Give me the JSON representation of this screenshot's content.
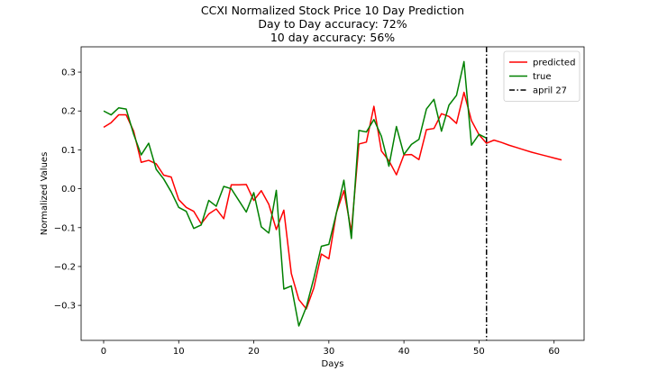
{
  "chart_data": {
    "type": "line",
    "title_lines": [
      "CCXI Normalized Stock Price 10 Day Prediction",
      "Day to Day accuracy: 72%",
      "10 day accuracy: 56%"
    ],
    "xlabel": "Days",
    "ylabel": "Normalized Values",
    "xlim": [
      -3,
      64
    ],
    "ylim": [
      -0.39,
      0.365
    ],
    "xticks": [
      0,
      10,
      20,
      30,
      40,
      50,
      60
    ],
    "xtick_labels": [
      "0",
      "10",
      "20",
      "30",
      "40",
      "50",
      "60"
    ],
    "yticks": [
      -0.3,
      -0.2,
      -0.1,
      0.0,
      0.1,
      0.2,
      0.3
    ],
    "ytick_labels": [
      "−0.3",
      "−0.2",
      "−0.1",
      "0.0",
      "0.1",
      "0.2",
      "0.3"
    ],
    "grid": false,
    "legend_position": "top-right",
    "series": [
      {
        "name": "predicted",
        "color": "#ff0000",
        "style": "solid",
        "x": [
          0,
          1,
          2,
          3,
          4,
          5,
          6,
          7,
          8,
          9,
          10,
          11,
          12,
          13,
          14,
          15,
          16,
          17,
          18,
          19,
          20,
          21,
          22,
          23,
          24,
          25,
          26,
          27,
          28,
          29,
          30,
          31,
          32,
          33,
          34,
          35,
          36,
          37,
          38,
          39,
          40,
          41,
          42,
          43,
          44,
          45,
          46,
          47,
          48,
          49,
          50,
          51,
          52,
          53,
          54,
          55,
          56,
          57,
          58,
          59,
          60,
          61
        ],
        "y": [
          0.158,
          0.17,
          0.19,
          0.19,
          0.148,
          0.068,
          0.073,
          0.064,
          0.035,
          0.03,
          -0.028,
          -0.048,
          -0.058,
          -0.09,
          -0.065,
          -0.052,
          -0.077,
          0.01,
          0.01,
          0.011,
          -0.03,
          -0.005,
          -0.04,
          -0.105,
          -0.055,
          -0.218,
          -0.285,
          -0.309,
          -0.255,
          -0.168,
          -0.18,
          -0.062,
          -0.005,
          -0.11,
          0.115,
          0.12,
          0.212,
          0.097,
          0.072,
          0.036,
          0.087,
          0.088,
          0.075,
          0.152,
          0.155,
          0.193,
          0.186,
          0.168,
          0.248,
          0.175,
          0.139,
          0.117,
          0.125,
          0.119,
          0.112,
          0.106,
          0.1,
          0.094,
          0.089,
          0.084,
          0.079,
          0.074
        ]
      },
      {
        "name": "true",
        "color": "#008000",
        "style": "solid",
        "x": [
          0,
          1,
          2,
          3,
          4,
          5,
          6,
          7,
          8,
          9,
          10,
          11,
          12,
          13,
          14,
          15,
          16,
          17,
          18,
          19,
          20,
          21,
          22,
          23,
          24,
          25,
          26,
          27,
          28,
          29,
          30,
          31,
          32,
          33,
          34,
          35,
          36,
          37,
          38,
          39,
          40,
          41,
          42,
          43,
          44,
          45,
          46,
          47,
          48,
          49,
          50,
          51
        ],
        "y": [
          0.2,
          0.19,
          0.208,
          0.205,
          0.14,
          0.087,
          0.117,
          0.05,
          0.025,
          -0.008,
          -0.048,
          -0.058,
          -0.102,
          -0.093,
          -0.03,
          -0.045,
          0.006,
          0.0,
          -0.03,
          -0.06,
          -0.01,
          -0.098,
          -0.114,
          -0.004,
          -0.258,
          -0.25,
          -0.353,
          -0.304,
          -0.23,
          -0.148,
          -0.143,
          -0.063,
          0.022,
          -0.128,
          0.15,
          0.146,
          0.178,
          0.135,
          0.058,
          0.16,
          0.088,
          0.114,
          0.127,
          0.205,
          0.23,
          0.148,
          0.215,
          0.24,
          0.327,
          0.112,
          0.14,
          0.13
        ]
      }
    ],
    "vline": {
      "label": "april 27",
      "x": 51,
      "color": "#000000",
      "style": "dashdot"
    }
  }
}
